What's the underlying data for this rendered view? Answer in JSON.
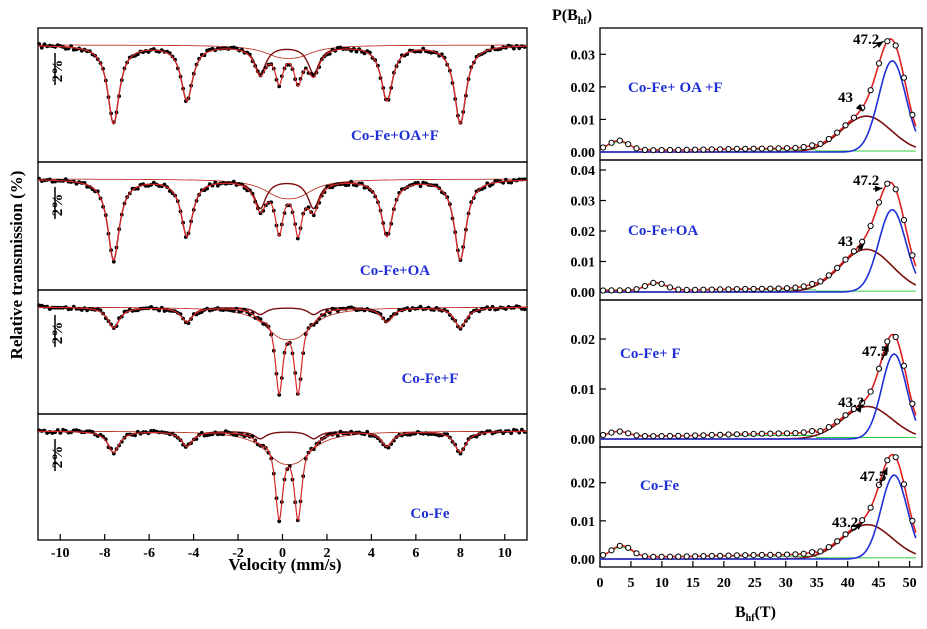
{
  "chart_data": [
    {
      "type": "line",
      "title": "",
      "xlabel": "Velocity (mm/s)",
      "ylabel": "Relative transmission (%)",
      "xlim": [
        -11,
        11
      ],
      "xticks": [
        -10,
        -8,
        -6,
        -4,
        -2,
        0,
        2,
        4,
        6,
        8,
        10
      ],
      "scale_bar_label": "2%",
      "sextet_lines": [
        -7.6,
        -4.3,
        -1.0,
        1.4,
        4.7,
        8.0
      ],
      "panels": [
        {
          "name": "Co-Fe+OA+F",
          "sextet_depth": 0.75,
          "doublet_depth": 0.35
        },
        {
          "name": "Co-Fe+OA",
          "sextet_depth": 0.82,
          "doublet_depth": 0.55
        },
        {
          "name": "Co-Fe+F",
          "sextet_depth": 0.22,
          "doublet_depth": 0.95
        },
        {
          "name": "Co-Fe",
          "sextet_depth": 0.22,
          "doublet_depth": 0.95
        }
      ]
    },
    {
      "type": "line",
      "title": "",
      "xlabel": "B_hf (T)",
      "ylabel": "P(B_hf)",
      "xlim": [
        0,
        52
      ],
      "xticks": [
        0,
        5,
        10,
        15,
        20,
        25,
        30,
        35,
        40,
        45,
        50
      ],
      "panels": [
        {
          "name": "Co-Fe+ OA +F",
          "ylim": [
            0,
            0.035
          ],
          "yticks": [
            0.0,
            0.01,
            0.02,
            0.03
          ],
          "annotations": [
            "47.2",
            "43"
          ],
          "components": [
            {
              "color": "blue",
              "center": 47.2,
              "amp": 0.028,
              "width": 2.2
            },
            {
              "color": "darkred",
              "center": 43,
              "amp": 0.011,
              "width": 4.0
            }
          ],
          "low_bump": {
            "center": 3,
            "amp": 0.003
          }
        },
        {
          "name": "Co-Fe+OA",
          "ylim": [
            0,
            0.04
          ],
          "yticks": [
            0.0,
            0.01,
            0.02,
            0.03,
            0.04
          ],
          "annotations": [
            "47.2",
            "43"
          ],
          "components": [
            {
              "color": "blue",
              "center": 47.2,
              "amp": 0.027,
              "width": 2.2
            },
            {
              "color": "darkred",
              "center": 43,
              "amp": 0.014,
              "width": 4.2
            }
          ],
          "low_bump": {
            "center": 9,
            "amp": 0.0025
          }
        },
        {
          "name": "Co-Fe+ F",
          "ylim": [
            0,
            0.027
          ],
          "yticks": [
            0.0,
            0.01,
            0.02
          ],
          "annotations": [
            "47.5",
            "43.2"
          ],
          "components": [
            {
              "color": "blue",
              "center": 47.5,
              "amp": 0.017,
              "width": 2.0
            },
            {
              "color": "darkred",
              "center": 43.2,
              "amp": 0.0065,
              "width": 4.0
            }
          ],
          "low_bump": {
            "center": 3,
            "amp": 0.001
          }
        },
        {
          "name": "Co-Fe",
          "ylim": [
            0,
            0.027
          ],
          "yticks": [
            0.0,
            0.01,
            0.02
          ],
          "annotations": [
            "47.5",
            "43.2"
          ],
          "components": [
            {
              "color": "blue",
              "center": 47.5,
              "amp": 0.022,
              "width": 2.1
            },
            {
              "color": "darkred",
              "center": 43.2,
              "amp": 0.009,
              "width": 4.0
            }
          ],
          "low_bump": {
            "center": 3.5,
            "amp": 0.003
          }
        }
      ]
    }
  ]
}
